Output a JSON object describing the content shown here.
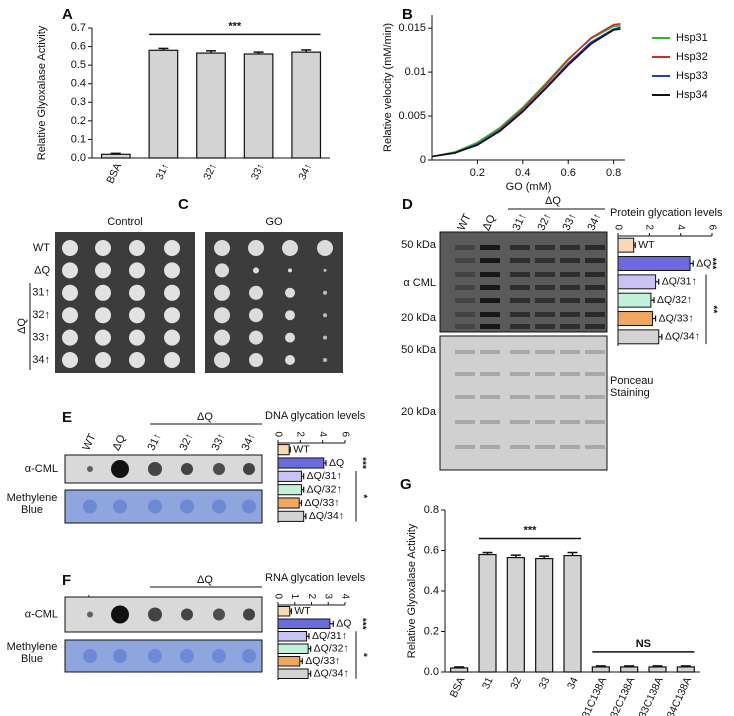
{
  "chart_data": [
    {
      "type": "bar",
      "panel_label": "A",
      "y_label": "Relative Glyoxalase Activity",
      "categories": [
        "BSA",
        "31↑",
        "32↑",
        "33↑",
        "34↑"
      ],
      "values": [
        0.02,
        0.58,
        0.565,
        0.56,
        0.57
      ],
      "errors": [
        0.005,
        0.01,
        0.012,
        0.01,
        0.012
      ],
      "color": "#d3d3d3",
      "ylim": [
        0,
        0.7
      ],
      "yticks": [
        {
          "value": 0,
          "label": "0.0"
        },
        0.1,
        0.2,
        0.3,
        0.4,
        0.5,
        0.6,
        0.7
      ],
      "annotations": [
        "***"
      ]
    },
    {
      "type": "line",
      "panel_label": "B",
      "x_label": "GO (mM)",
      "y_label": "Relative velocity (mM/min)",
      "x": [
        0,
        0.1,
        0.2,
        0.3,
        0.4,
        0.5,
        0.6,
        0.7,
        0.8,
        0.83
      ],
      "xlim": [
        0,
        0.85
      ],
      "xticks": [
        0.2,
        0.4,
        0.6,
        0.8
      ],
      "ylim": [
        0,
        0.0165
      ],
      "yticks": [
        0,
        0.005,
        0.01,
        0.015
      ],
      "legend": "upper right",
      "series": [
        {
          "name": "Hsp31",
          "color": "#2db82d",
          "values": [
            0.0004,
            0.0009,
            0.002,
            0.0037,
            0.006,
            0.0087,
            0.0115,
            0.0138,
            0.0152,
            0.0153
          ]
        },
        {
          "name": "Hsp32",
          "color": "#d62728",
          "values": [
            0.0004,
            0.0008,
            0.0018,
            0.0035,
            0.0058,
            0.0085,
            0.0114,
            0.0139,
            0.0154,
            0.0155
          ]
        },
        {
          "name": "Hsp33",
          "color": "#1f3fbf",
          "values": [
            0.0004,
            0.0008,
            0.0018,
            0.0034,
            0.0056,
            0.0082,
            0.011,
            0.0134,
            0.0149,
            0.0151
          ]
        },
        {
          "name": "Hsp34",
          "color": "#111111",
          "values": [
            0.0004,
            0.0008,
            0.0017,
            0.0033,
            0.0055,
            0.0081,
            0.0108,
            0.0132,
            0.0148,
            0.0149
          ]
        }
      ]
    },
    {
      "type": "hbar",
      "title": "Protein glycation levels",
      "categories": [
        "WT",
        "ΔQ",
        "ΔQ/31↑",
        "ΔQ/32↑",
        "ΔQ/33↑",
        "ΔQ/34↑"
      ],
      "values": [
        1,
        4.6,
        2.4,
        2.1,
        2.2,
        2.6
      ],
      "errors": [
        0.1,
        0.2,
        0.2,
        0.2,
        0.2,
        0.2
      ],
      "colors": [
        "#f7d9b5",
        "#6b6be0",
        "#c9c3f5",
        "#c3f0d8",
        "#f0a860",
        "#d3d3d3"
      ],
      "xlim": [
        0,
        6
      ],
      "xticks": [
        0,
        2,
        4,
        6
      ],
      "annotations": [
        "***",
        "**"
      ]
    },
    {
      "type": "hbar",
      "title": "DNA glycation levels",
      "categories": [
        "WT",
        "ΔQ",
        "ΔQ/31↑",
        "ΔQ/32↑",
        "ΔQ/33↑",
        "ΔQ/34↑"
      ],
      "values": [
        1,
        4.1,
        2.1,
        2.1,
        1.9,
        2.3
      ],
      "errors": [
        0.1,
        0.2,
        0.2,
        0.2,
        0.2,
        0.2
      ],
      "colors": [
        "#f7d9b5",
        "#6b6be0",
        "#c9c3f5",
        "#c3f0d8",
        "#f0a860",
        "#d3d3d3"
      ],
      "xlim": [
        0,
        6
      ],
      "xticks": [
        0,
        2,
        4,
        6
      ],
      "annotations": [
        "***",
        "*"
      ]
    },
    {
      "type": "hbar",
      "title": "RNA glycation levels",
      "categories": [
        "WT",
        "ΔQ",
        "ΔQ/31↑",
        "ΔQ/32↑",
        "ΔQ/33↑",
        "ΔQ/34↑"
      ],
      "values": [
        0.7,
        3.1,
        1.7,
        1.8,
        1.3,
        1.8
      ],
      "errors": [
        0.1,
        0.2,
        0.15,
        0.15,
        0.15,
        0.15
      ],
      "colors": [
        "#f7d9b5",
        "#6b6be0",
        "#c9c3f5",
        "#c3f0d8",
        "#f0a860",
        "#d3d3d3"
      ],
      "xlim": [
        0,
        4
      ],
      "xticks": [
        0,
        1,
        2,
        3,
        4
      ],
      "annotations": [
        "***",
        "*"
      ]
    },
    {
      "type": "bar",
      "panel_label": "G",
      "y_label": "Relative Glyoxalase Activity",
      "categories": [
        "BSA",
        "31",
        "32",
        "33",
        "34",
        "31C138A",
        "32C138A",
        "33C138A",
        "34C138A"
      ],
      "values": [
        0.02,
        0.58,
        0.565,
        0.56,
        0.575,
        0.025,
        0.025,
        0.025,
        0.025
      ],
      "errors": [
        0.005,
        0.01,
        0.012,
        0.012,
        0.015,
        0.005,
        0.005,
        0.005,
        0.005
      ],
      "color": "#d3d3d3",
      "ylim": [
        0,
        0.8
      ],
      "yticks": [
        {
          "value": 0,
          "label": "0.0"
        },
        0.2,
        0.4,
        0.6,
        0.8
      ],
      "annotations": [
        "***",
        "NS"
      ]
    }
  ],
  "panels": {
    "C": {
      "label": "C",
      "columns": [
        "Control",
        "GO"
      ],
      "rows": [
        "WT",
        "ΔQ",
        "31↑",
        "32↑",
        "33↑",
        "34↑"
      ],
      "group": "ΔQ"
    },
    "D": {
      "label": "D",
      "lanes": [
        "WT",
        "ΔQ",
        "31↑",
        "32↑",
        "33↑",
        "34↑"
      ],
      "group": "ΔQ",
      "markers": [
        "50 kDa",
        "20 kDa",
        "50 kDa",
        "20 kDa"
      ],
      "antibody": "α CML",
      "stain": "Ponceau Staining"
    },
    "E": {
      "label": "E",
      "lanes": [
        "WT",
        "ΔQ",
        "31↑",
        "32↑",
        "33↑",
        "34↑"
      ],
      "group": "ΔQ",
      "rows": [
        "α-CML",
        "Methylene Blue"
      ]
    },
    "F": {
      "label": "F",
      "lanes": [
        "WT",
        "ΔQ",
        "31↑",
        "32↑",
        "33↑",
        "34↑"
      ],
      "group": "ΔQ",
      "rows": [
        "α-CML",
        "Methylene Blue"
      ]
    }
  }
}
